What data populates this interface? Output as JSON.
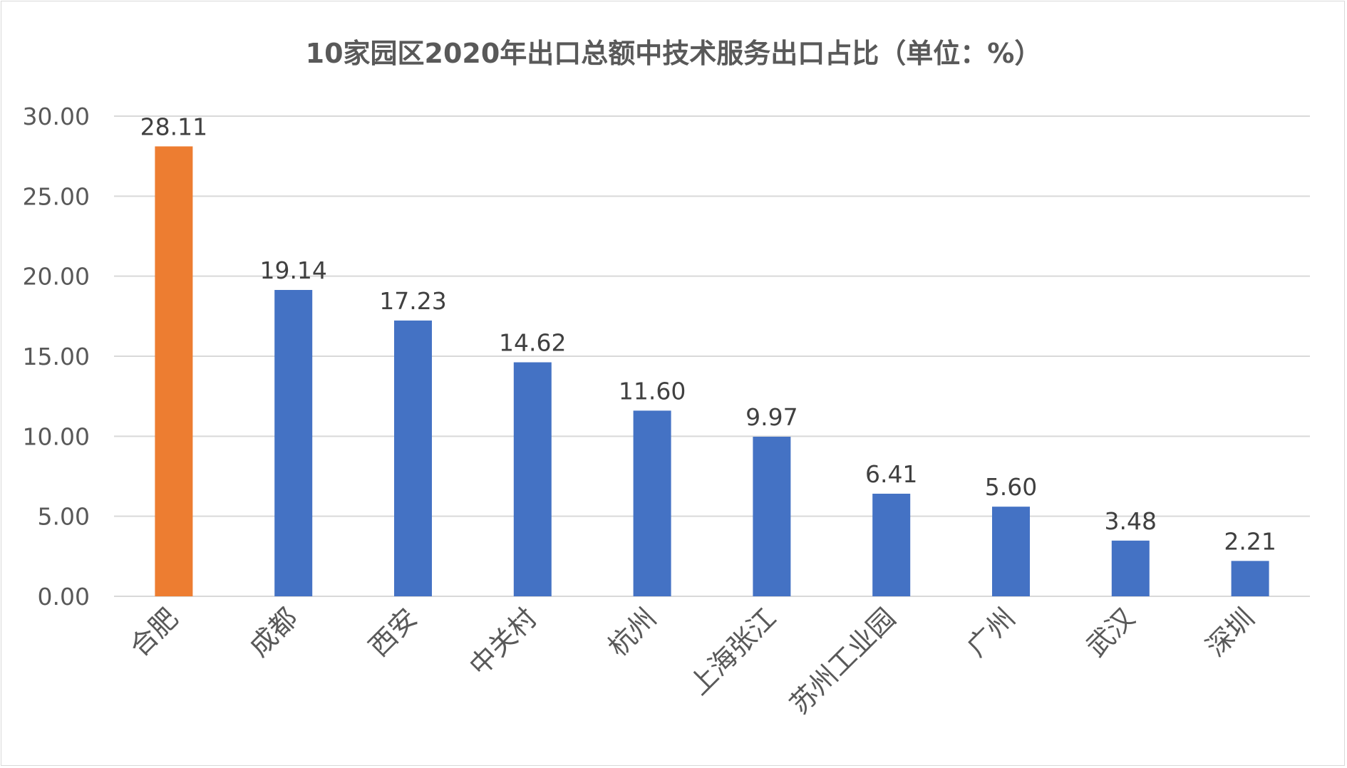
{
  "chart_data": {
    "type": "bar",
    "title": "10家园区2020年出口总额中技术服务出口占比（单位：%）",
    "categories": [
      "合肥",
      "成都",
      "西安",
      "中关村",
      "杭州",
      "上海张江",
      "苏州工业园",
      "广州",
      "武汉",
      "深圳"
    ],
    "values": [
      28.11,
      19.14,
      17.23,
      14.62,
      11.6,
      9.97,
      6.41,
      5.6,
      3.48,
      2.21
    ],
    "data_labels": [
      "28.11",
      "19.14",
      "17.23",
      "14.62",
      "11.60",
      "9.97",
      "6.41",
      "5.60",
      "3.48",
      "2.21"
    ],
    "y_ticks": [
      "0.00",
      "5.00",
      "10.00",
      "15.00",
      "20.00",
      "25.00",
      "30.00"
    ],
    "ylim": [
      0,
      30
    ],
    "grid": true,
    "colors": {
      "highlight": "#ED7D31",
      "default": "#4472C4",
      "grid": "#d9d9d9",
      "text": "#595959"
    },
    "highlight_index": 0
  }
}
